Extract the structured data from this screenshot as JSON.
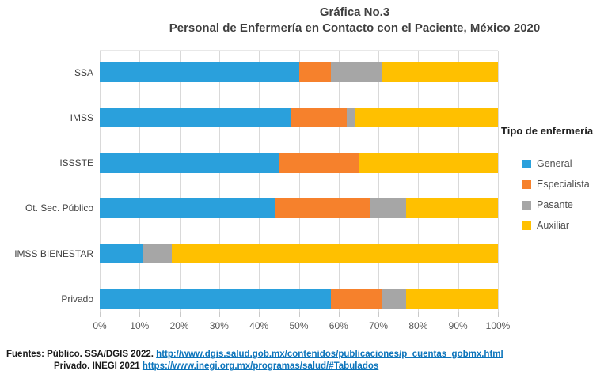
{
  "title": {
    "line1": "Gráfica No.3",
    "line2": "Personal de Enfermería en Contacto con el Paciente, México 2020"
  },
  "legend": {
    "title": "Tipo de enfermería",
    "items": [
      {
        "label": "General",
        "color": "#2AA0DC"
      },
      {
        "label": "Especialista",
        "color": "#F6812C"
      },
      {
        "label": "Pasante",
        "color": "#A6A6A6"
      },
      {
        "label": "Auxiliar",
        "color": "#FFC000"
      }
    ]
  },
  "footer": {
    "line1_prefix": "Fuentes: Público. SSA/DGIS 2022. ",
    "line1_link": "http://www.dgis.salud.gob.mx/contenidos/publicaciones/p_cuentas_gobmx.html",
    "line2_prefix": "Privado. INEGI 2021 ",
    "line2_link": "https://www.inegi.org.mx/programas/salud/#Tabulados"
  },
  "chart_data": {
    "type": "bar",
    "orientation": "horizontal",
    "stacked": true,
    "title": "Gráfica No.3 — Personal de Enfermería en Contacto con el Paciente, México 2020",
    "categories": [
      "SSA",
      "IMSS",
      "ISSSTE",
      "Ot. Sec. Público",
      "IMSS BIENESTAR",
      "Privado"
    ],
    "series": [
      {
        "name": "General",
        "color": "#2AA0DC",
        "values": [
          50,
          48,
          45,
          44,
          11,
          58
        ]
      },
      {
        "name": "Especialista",
        "color": "#F6812C",
        "values": [
          8,
          14,
          20,
          24,
          0,
          13
        ]
      },
      {
        "name": "Pasante",
        "color": "#A6A6A6",
        "values": [
          13,
          2,
          0,
          9,
          7,
          6
        ]
      },
      {
        "name": "Auxiliar",
        "color": "#FFC000",
        "values": [
          29,
          36,
          35,
          23,
          82,
          23
        ]
      }
    ],
    "x_ticks": [
      "0%",
      "10%",
      "20%",
      "30%",
      "40%",
      "50%",
      "60%",
      "70%",
      "80%",
      "90%",
      "100%"
    ],
    "xlim": [
      0,
      100
    ],
    "unit": "percent",
    "grid": true,
    "gridline_color": "#D9D9D9",
    "legend_position": "right",
    "legend_title": "Tipo de enfermería"
  }
}
